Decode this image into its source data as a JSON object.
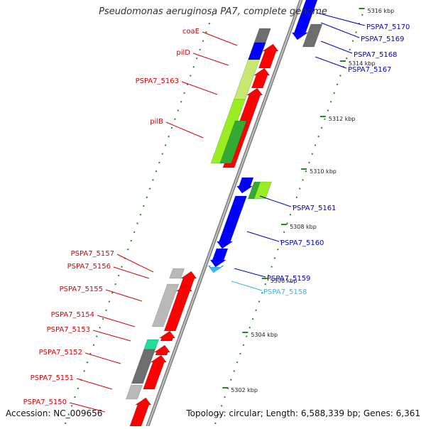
{
  "title": "Pseudomonas aeruginosa PA7, complete genome",
  "footer": {
    "accession": "Accession: NC_009656",
    "topology": "Topology: circular; Length: 6,588,339 bp; Genes: 6,361"
  },
  "colors": {
    "forward": "#ff0000",
    "reverse": "#0000ff",
    "pseudo_gray": "#b9b9b9",
    "dark_gray": "#6e6e6e",
    "lime": "#99ee22",
    "green": "#33aa33",
    "cyan": "#33bbee",
    "teal": "#22dd99",
    "backbone": "#888888",
    "tick": "#228822"
  },
  "ticks": [
    {
      "label": "5302 kbp"
    },
    {
      "label": "5304 kbp"
    },
    {
      "label": "5306 kbp"
    },
    {
      "label": "5308 kbp"
    },
    {
      "label": "5310 kbp"
    },
    {
      "label": "5312 kbp"
    },
    {
      "label": "5314 kbp"
    },
    {
      "label": "5316 kbp"
    }
  ],
  "labels_left": [
    {
      "text": "coaE",
      "color": "#dd0000"
    },
    {
      "text": "pilD",
      "color": "#dd0000"
    },
    {
      "text": "PSPA7_5163",
      "color": "#dd0000"
    },
    {
      "text": "pilB",
      "color": "#dd0000"
    },
    {
      "text": "PSPA7_5157",
      "color": "#dd0000"
    },
    {
      "text": "PSPA7_5156",
      "color": "#dd0000"
    },
    {
      "text": "PSPA7_5155",
      "color": "#dd0000"
    },
    {
      "text": "PSPA7_5154",
      "color": "#dd0000"
    },
    {
      "text": "PSPA7_5153",
      "color": "#dd0000"
    },
    {
      "text": "PSPA7_5152",
      "color": "#dd0000"
    },
    {
      "text": "PSPA7_5151",
      "color": "#dd0000"
    },
    {
      "text": "PSPA7_5150",
      "color": "#dd0000"
    }
  ],
  "labels_right": [
    {
      "text": "PSPA7_5170",
      "color": "#0000cc"
    },
    {
      "text": "PSPA7_5169",
      "color": "#0000cc"
    },
    {
      "text": "PSPA7_5168",
      "color": "#0000cc"
    },
    {
      "text": "PSPA7_5167",
      "color": "#0000cc"
    },
    {
      "text": "PSPA7_5161",
      "color": "#0000cc"
    },
    {
      "text": "PSPA7_5160",
      "color": "#0000cc"
    },
    {
      "text": "PSPA7_5159",
      "color": "#0000cc"
    },
    {
      "text": "PSPA7_5158",
      "color": "#33bbdd"
    }
  ]
}
